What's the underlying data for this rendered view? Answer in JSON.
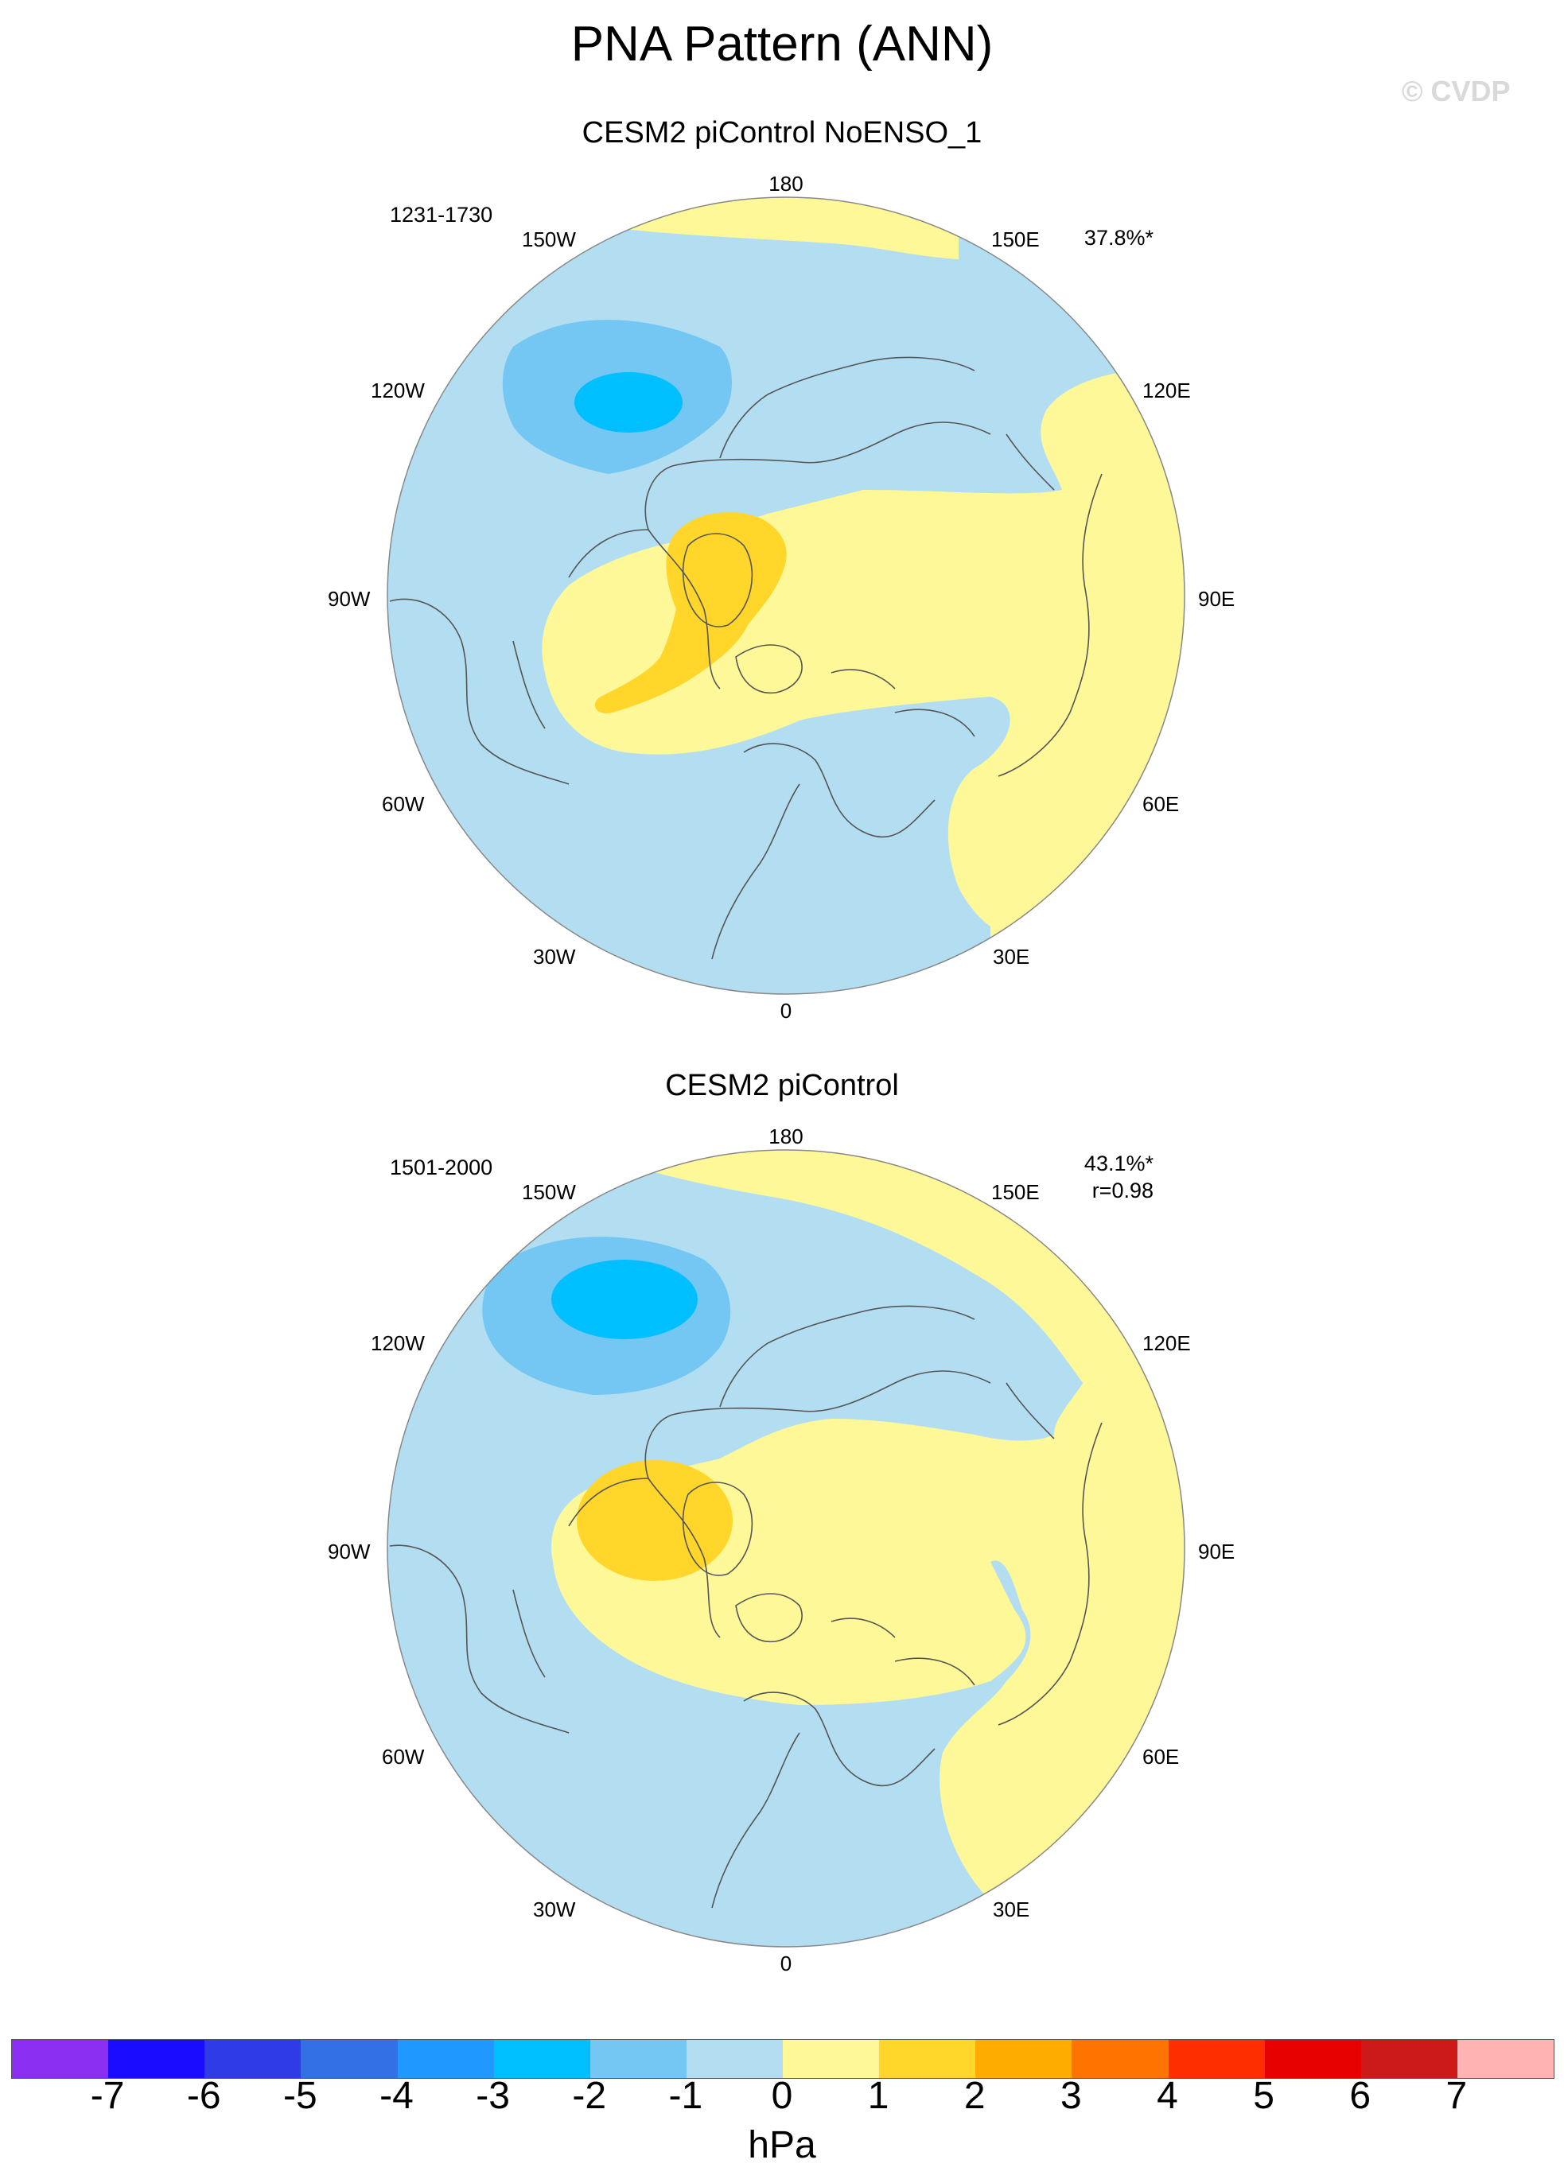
{
  "title": "PNA Pattern (ANN)",
  "watermark": "© CVDP",
  "colors": {
    "neg1": "#b3def2",
    "neg2": "#73c7f2",
    "neg3": "#00bfff",
    "pos1": "#fff899",
    "pos2": "#ffd629",
    "coast": "#555555",
    "rim": "#888888"
  },
  "panels": [
    {
      "title": "CESM2 piControl NoENSO_1",
      "period": "1231-1730",
      "stats": [
        "37.8%*"
      ],
      "lon_labels": {
        "top": "180",
        "top_left": "150W",
        "top_right": "150E",
        "upper_left": "120W",
        "upper_right": "120E",
        "left": "90W",
        "right": "90E",
        "lower_left": "60W",
        "lower_right": "60E",
        "bottom_left": "30W",
        "bottom_right": "30E",
        "bottom": "0"
      }
    },
    {
      "title": "CESM2 piControl",
      "period": "1501-2000",
      "stats": [
        "43.1%*",
        "r=0.98"
      ],
      "lon_labels": {
        "top": "180",
        "top_left": "150W",
        "top_right": "150E",
        "upper_left": "120W",
        "upper_right": "120E",
        "left": "90W",
        "right": "90E",
        "lower_left": "60W",
        "lower_right": "60E",
        "bottom_left": "30W",
        "bottom_right": "30E",
        "bottom": "0"
      }
    }
  ],
  "colorbar": {
    "units": "hPa",
    "labels": [
      "-7",
      "-6",
      "-5",
      "-4",
      "-3",
      "-2",
      "-1",
      "0",
      "1",
      "2",
      "3",
      "4",
      "5",
      "6",
      "7"
    ],
    "colors": [
      "#8a2ef2",
      "#1a0dff",
      "#2e3be6",
      "#3370e6",
      "#1f99ff",
      "#00bfff",
      "#73c7f2",
      "#b3def2",
      "#fff899",
      "#ffd629",
      "#ffab00",
      "#ff7300",
      "#ff2e00",
      "#e60000",
      "#cc1a1a",
      "#ffb3b3"
    ]
  }
}
